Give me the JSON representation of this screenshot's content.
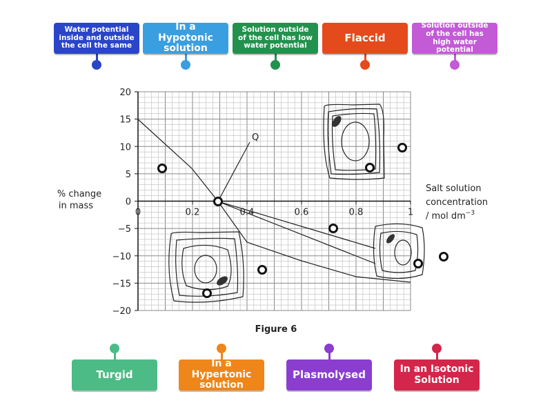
{
  "top_labels": [
    {
      "text": "Water potential inside and outside the cell the same",
      "color": "#2a45c8"
    },
    {
      "text": "In a Hypotonic solution",
      "color": "#3a9fe0"
    },
    {
      "text": "Solution outside of the cell has low water potential",
      "color": "#23914e"
    },
    {
      "text": "Flaccid",
      "color": "#e54a1c"
    },
    {
      "text": "Solution outside of the cell has high water potential",
      "color": "#c35ad6"
    }
  ],
  "bottom_labels": [
    {
      "text": "Turgid",
      "color": "#4cbb85"
    },
    {
      "text": "In a Hypertonic solution",
      "color": "#ee861a"
    },
    {
      "text": "Plasmolysed",
      "color": "#8a3dcf"
    },
    {
      "text": "In an Isotonic Solution",
      "color": "#d3264a"
    }
  ],
  "figure": {
    "y_label": "% change in mass",
    "x_label": [
      "Salt solution",
      "concentration",
      "/ mol dm"
    ],
    "x_label_sup": "−3",
    "yticks": [
      "20",
      "15",
      "10",
      "5",
      "0",
      "−5",
      "−10",
      "−15",
      "−20"
    ],
    "xticks": [
      "0",
      "0.2",
      "0.4",
      "0.6",
      "0.8",
      "1"
    ],
    "point_label": "Q",
    "caption": "Figure 6"
  }
}
